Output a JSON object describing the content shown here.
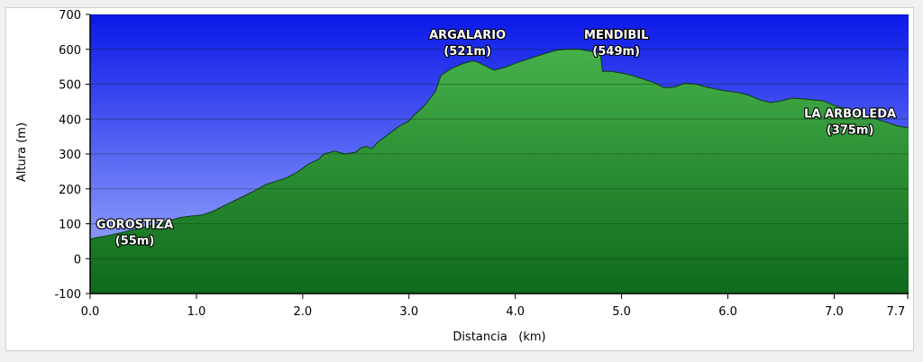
{
  "chart_data": {
    "type": "area",
    "xlabel": "Distancia   (km)",
    "ylabel": "Altura (m)",
    "xlim": [
      0.0,
      7.7
    ],
    "ylim": [
      -100,
      700
    ],
    "x_ticks": [
      0.0,
      1.0,
      2.0,
      3.0,
      4.0,
      5.0,
      6.0,
      7.0,
      7.7
    ],
    "x_tick_labels": [
      "0.0",
      "1.0",
      "2.0",
      "3.0",
      "4.0",
      "5.0",
      "6.0",
      "7.0",
      "7.7"
    ],
    "y_ticks": [
      -100,
      0,
      100,
      200,
      300,
      400,
      500,
      600,
      700
    ],
    "y_tick_labels": [
      "-100",
      "0",
      "100",
      "200",
      "300",
      "400",
      "500",
      "600",
      "700"
    ],
    "grid": true,
    "colors": {
      "sky_top": "#0a18e8",
      "sky_bottom": "#a8b6ff",
      "terrain_top": "#46b04a",
      "terrain_bottom": "#0f6a1c",
      "terrain_edge": "#0c3d10"
    },
    "series": [
      {
        "x": [
          0.0,
          0.05,
          0.15,
          0.3,
          0.5,
          0.7,
          0.85,
          0.95,
          1.05,
          1.15,
          1.25,
          1.35,
          1.45,
          1.55,
          1.65,
          1.75,
          1.85,
          1.95,
          2.05,
          2.15,
          2.2,
          2.3,
          2.4,
          2.5,
          2.55,
          2.6,
          2.65,
          2.7,
          2.8,
          2.9,
          3.0,
          3.05,
          3.15,
          3.25,
          3.3,
          3.4,
          3.5,
          3.6,
          3.65,
          3.7,
          3.8,
          3.9,
          4.0,
          4.1,
          4.2,
          4.3,
          4.4,
          4.5,
          4.6,
          4.7,
          4.8,
          4.82,
          4.9,
          5.0,
          5.1,
          5.2,
          5.3,
          5.4,
          5.5,
          5.6,
          5.7,
          5.8,
          5.9,
          6.0,
          6.1,
          6.2,
          6.3,
          6.4,
          6.5,
          6.6,
          6.7,
          6.8,
          6.9,
          7.0,
          7.1,
          7.2,
          7.3,
          7.4,
          7.5,
          7.6,
          7.7
        ],
        "y": [
          55,
          60,
          65,
          75,
          90,
          105,
          118,
          122,
          125,
          135,
          150,
          165,
          180,
          195,
          212,
          222,
          232,
          248,
          270,
          285,
          300,
          308,
          300,
          305,
          318,
          322,
          315,
          332,
          355,
          378,
          395,
          412,
          440,
          480,
          525,
          545,
          558,
          567,
          563,
          555,
          540,
          548,
          560,
          570,
          580,
          590,
          598,
          600,
          600,
          595,
          590,
          537,
          537,
          532,
          525,
          515,
          505,
          490,
          492,
          503,
          500,
          492,
          485,
          480,
          476,
          468,
          455,
          447,
          452,
          460,
          458,
          455,
          452,
          440,
          430,
          420,
          410,
          400,
          390,
          380,
          375
        ]
      }
    ],
    "annotations": [
      {
        "name": "GOROSTIZA",
        "elev": "(55m)",
        "x": 0.42,
        "y": 87
      },
      {
        "name": "ARGALARIO",
        "elev": "(521m)",
        "x": 3.55,
        "y": 630
      },
      {
        "name": "MENDIBIL",
        "elev": "(549m)",
        "x": 4.95,
        "y": 630
      },
      {
        "name": "LA ARBOLEDA",
        "elev": "(375m)",
        "x": 7.15,
        "y": 405
      }
    ]
  }
}
